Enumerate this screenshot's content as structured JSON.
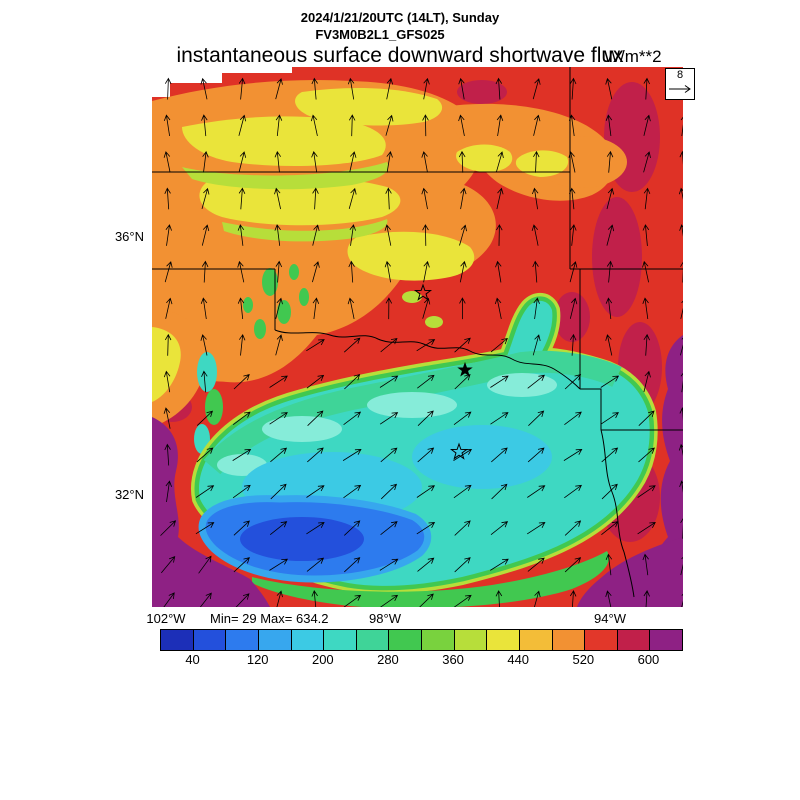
{
  "header": {
    "date_line": "2024/1/21/20UTC (14LT), Sunday",
    "model_line": "FV3M0B2L1_GFS025",
    "title": "instantaneous surface downward shortwave flux",
    "units": "W/m**2"
  },
  "axes": {
    "lat": [
      "36°N",
      "32°N"
    ],
    "lon": [
      "102°W",
      "98°W",
      "94°W"
    ]
  },
  "stats_line": "Min= 29 Max= 634.2",
  "wind_ref_label": "8",
  "chart_data": {
    "type": "heatmap",
    "title": "instantaneous surface downward shortwave flux",
    "datetime": "2024/1/21/20UTC (14LT), Sunday",
    "model": "FV3M0B2L1_GFS025",
    "units": "W/m**2",
    "min": 29,
    "max": 634.2,
    "region": {
      "lat_ticks": [
        "36°N",
        "32°N"
      ],
      "lon_ticks": [
        "102°W",
        "98°W",
        "94°W"
      ]
    },
    "colorbar": {
      "tick_values": [
        40,
        120,
        200,
        280,
        360,
        440,
        520,
        600
      ],
      "level_step": 40,
      "colors": [
        "#1c2fb8",
        "#2350dc",
        "#2d7bee",
        "#37a7ee",
        "#3ccae4",
        "#3ed8c2",
        "#3fd498",
        "#41c850",
        "#79d23e",
        "#b7de3a",
        "#eae43a",
        "#f3bd38",
        "#f29133",
        "#e2372a",
        "#c1204a",
        "#8e2184"
      ]
    },
    "wind_vector_reference": 8,
    "overlays": [
      "wind vectors",
      "state boundaries",
      "star markers"
    ]
  }
}
